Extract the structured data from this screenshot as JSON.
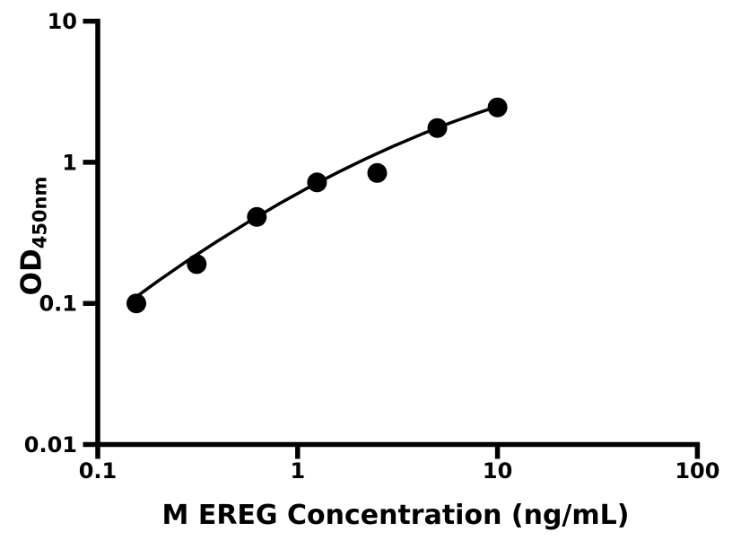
{
  "chart_data": {
    "type": "scatter",
    "title": "",
    "xlabel": "M EREG Concentration (ng/mL)",
    "ylabel_main": "OD",
    "ylabel_sub": "450nm",
    "x_scale": "log10",
    "y_scale": "log10",
    "xlim": [
      0.1,
      100
    ],
    "ylim": [
      0.01,
      10
    ],
    "x_ticks": [
      0.1,
      1,
      10,
      100
    ],
    "x_tick_labels": [
      "0.1",
      "1",
      "10",
      "100"
    ],
    "y_ticks": [
      10,
      1,
      0.1,
      0.01
    ],
    "y_tick_labels": [
      "10",
      "1",
      "0.1",
      "0.01"
    ],
    "grid": false,
    "legend": false,
    "colors": {
      "marker": "#000000",
      "line": "#000000",
      "axis": "#000000",
      "text": "#000000",
      "background": "#ffffff"
    },
    "points": [
      {
        "x": 0.156,
        "y": 0.1
      },
      {
        "x": 0.3125,
        "y": 0.19
      },
      {
        "x": 0.625,
        "y": 0.41
      },
      {
        "x": 1.25,
        "y": 0.72
      },
      {
        "x": 2.5,
        "y": 0.84
      },
      {
        "x": 5,
        "y": 1.75
      },
      {
        "x": 10,
        "y": 2.45
      }
    ],
    "fit_curve": [
      {
        "x": 0.15,
        "y": 0.107
      },
      {
        "x": 0.2,
        "y": 0.144
      },
      {
        "x": 0.28,
        "y": 0.2
      },
      {
        "x": 0.4,
        "y": 0.278
      },
      {
        "x": 0.55,
        "y": 0.368
      },
      {
        "x": 0.8,
        "y": 0.504
      },
      {
        "x": 1.1,
        "y": 0.647
      },
      {
        "x": 1.6,
        "y": 0.853
      },
      {
        "x": 2.2,
        "y": 1.062
      },
      {
        "x": 3.0,
        "y": 1.298
      },
      {
        "x": 4.2,
        "y": 1.589
      },
      {
        "x": 5.8,
        "y": 1.901
      },
      {
        "x": 8.0,
        "y": 2.241
      },
      {
        "x": 10.0,
        "y": 2.489
      }
    ]
  }
}
